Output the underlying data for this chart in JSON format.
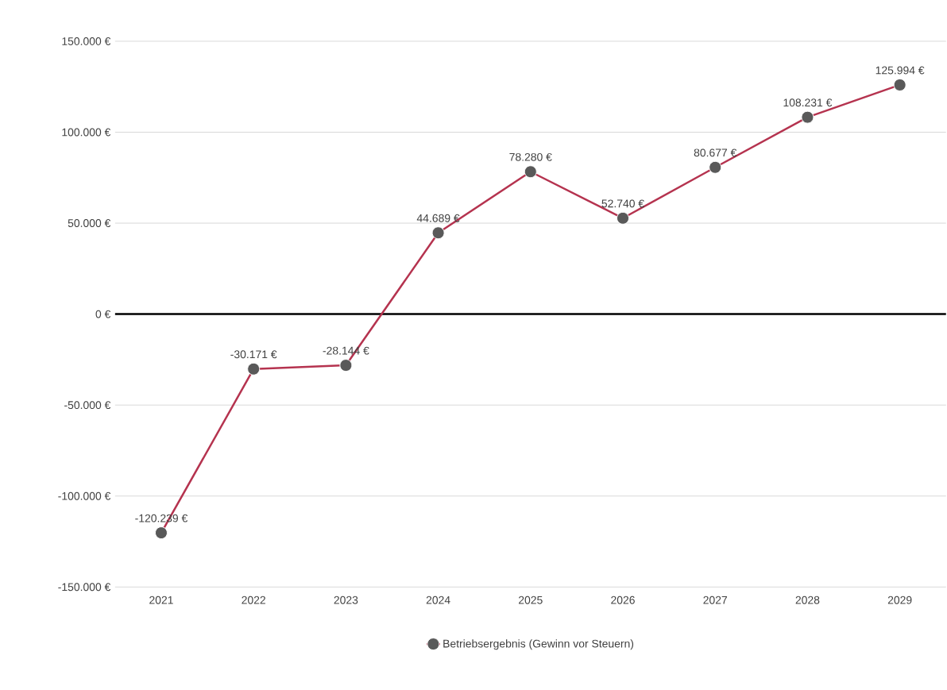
{
  "chart_data": {
    "type": "line",
    "categories": [
      "2021",
      "2022",
      "2023",
      "2024",
      "2025",
      "2026",
      "2027",
      "2028",
      "2029"
    ],
    "series": [
      {
        "name": "Betriebsergebnis (Gewinn vor Steuern)",
        "color": "#b5334f",
        "values": [
          -120239,
          -30171,
          -28144,
          44689,
          78280,
          52740,
          80677,
          108231,
          125994
        ],
        "value_labels": [
          "-120.239 €",
          "-30.171 €",
          "-28.144 €",
          "44.689 €",
          "78.280 €",
          "52.740 €",
          "80.677 €",
          "108.231 €",
          "125.994 €"
        ]
      }
    ],
    "ylim": [
      -150000,
      150000
    ],
    "yticks": [
      {
        "value": -150000,
        "label": "-150.000 €"
      },
      {
        "value": -100000,
        "label": "-100.000 €"
      },
      {
        "value": -50000,
        "label": "-50.000 €"
      },
      {
        "value": 0,
        "label": "0 €"
      },
      {
        "value": 50000,
        "label": "50.000 €"
      },
      {
        "value": 100000,
        "label": "100.000 €"
      },
      {
        "value": 150000,
        "label": "150.000 €"
      }
    ],
    "grid": "y",
    "legend": "bottom",
    "marker": "circle",
    "line_style": "solid"
  }
}
